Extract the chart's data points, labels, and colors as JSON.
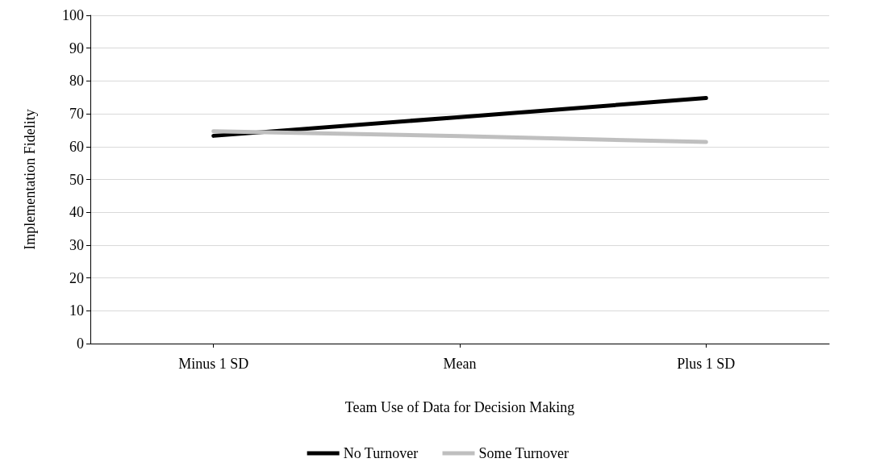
{
  "chart_data": {
    "type": "line",
    "xlabel": "Team Use of Data for Decision Making",
    "ylabel": "Implementation Fidelity",
    "categories": [
      "Minus 1 SD",
      "Mean",
      "Plus 1 SD"
    ],
    "series": [
      {
        "name": "No Turnover",
        "color": "#000000",
        "values": [
          63.3,
          69.0,
          74.8
        ]
      },
      {
        "name": "Some Turnover",
        "color": "#bfbfbf",
        "values": [
          64.7,
          63.2,
          61.4
        ]
      }
    ],
    "ylim": [
      0,
      100
    ],
    "yticks": [
      0,
      10,
      20,
      30,
      40,
      50,
      60,
      70,
      80,
      90,
      100
    ],
    "grid": "y",
    "legend": "bottom",
    "marker": "none",
    "line_style": "solid"
  }
}
